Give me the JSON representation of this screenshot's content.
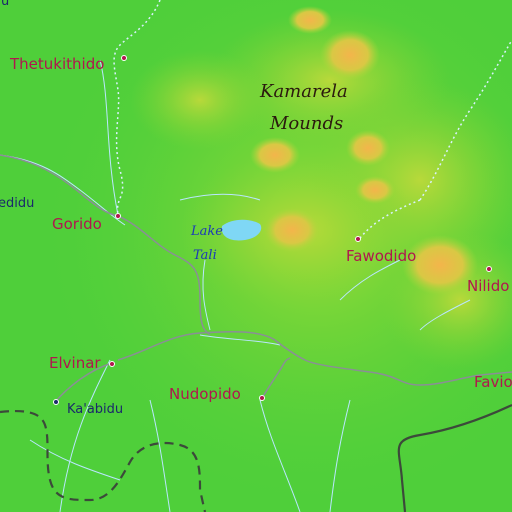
{
  "map": {
    "region_label": {
      "line1": "Kamarela",
      "line2": "Mounds"
    },
    "lake_label": {
      "line1": "Lake",
      "line2": "Tali"
    },
    "places": {
      "thetukithido": "Thetukithido",
      "edidu": "edidu",
      "gorido": "Gorido",
      "fawodido": "Fawodido",
      "nilido": "Nilido",
      "elvinar": "Elvinar",
      "kaabidu": "Ka'abidu",
      "nudopido": "Nudopido",
      "favio": "Favio",
      "top_u": "u"
    },
    "colors": {
      "lowland": "#4fcf3a",
      "highland": "#a6d83a",
      "peak": "#f0b54a",
      "water": "#7fd7f5",
      "road": "#8a8f96",
      "stream": "#b9e6ff",
      "label": "#b0174e"
    }
  }
}
